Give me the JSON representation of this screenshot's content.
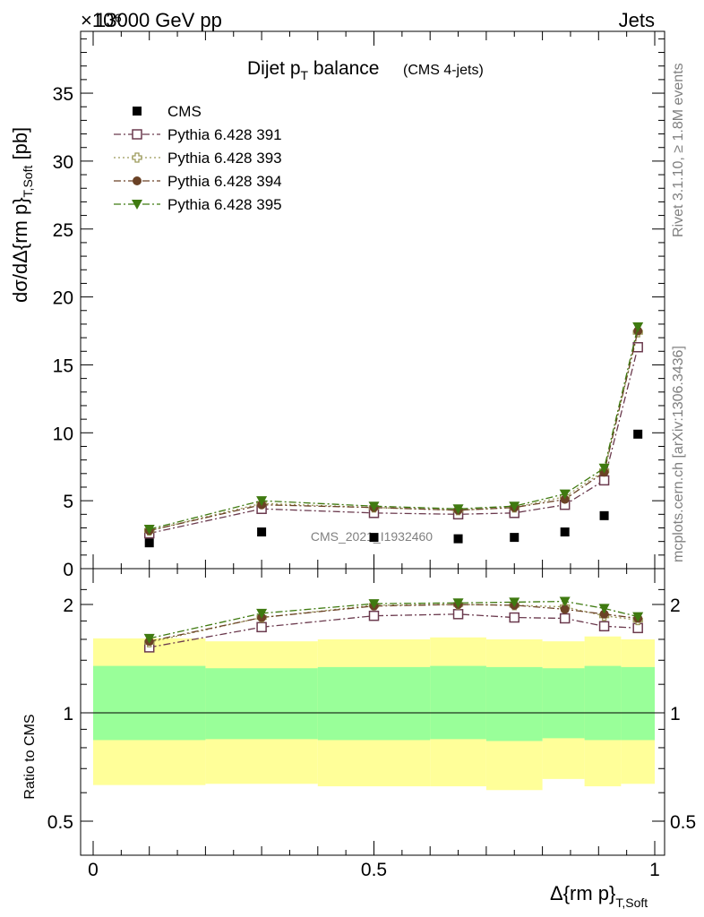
{
  "header": {
    "energy_label": "13000 GeV pp",
    "exponent_label": "×10⁶",
    "process_label": "Jets"
  },
  "title": {
    "main": "Dijet p",
    "main_sub": "T",
    "main_tail": " balance",
    "small": "(CMS 4-jets)"
  },
  "side_labels": {
    "rivet": "Rivet 3.1.10, ≥ 1.8M events",
    "mcplots": "mcplots.cern.ch [arXiv:1306.3436]"
  },
  "watermark": "CMS_2021_I1932460",
  "axes": {
    "ylabel_main": "dσ/dΔ{rm p}",
    "ylabel_main_sub": "T,Soft",
    "ylabel_main_unit": " [pb]",
    "ylabel_ratio": "Ratio to CMS",
    "xlabel": "Δ{rm p}",
    "xlabel_sub": "T,Soft"
  },
  "chart_data": [
    {
      "type": "scatter",
      "panel": "main",
      "x": [
        0.1,
        0.3,
        0.5,
        0.65,
        0.75,
        0.84,
        0.91,
        0.97
      ],
      "ylim": [
        0,
        39
      ],
      "xlim": [
        -0.02,
        1.02
      ],
      "y_multiplier": "×10⁶",
      "yticks": [
        0,
        5,
        10,
        15,
        20,
        25,
        30,
        35
      ],
      "ytick_labels": [
        "0",
        "5",
        "10",
        "15",
        "20",
        "25",
        "30",
        "35"
      ],
      "series": [
        {
          "name": "CMS",
          "color": "#000000",
          "marker": "square-filled",
          "line": "none",
          "values": [
            1.9,
            2.7,
            2.3,
            2.2,
            2.3,
            2.7,
            3.9,
            9.9
          ]
        },
        {
          "name": "Pythia 6.428 391",
          "color": "#6b3a4e",
          "marker": "square-open",
          "line": "dashdot",
          "values": [
            2.6,
            4.4,
            4.1,
            4.0,
            4.1,
            4.7,
            6.5,
            16.3
          ]
        },
        {
          "name": "Pythia 6.428 393",
          "color": "#9c9a5a",
          "marker": "cross-open",
          "line": "dotted",
          "values": [
            2.8,
            4.8,
            4.5,
            4.3,
            4.5,
            5.3,
            7.2,
            17.4
          ]
        },
        {
          "name": "Pythia 6.428 394",
          "color": "#6b4226",
          "marker": "circle-filled",
          "line": "dashdot",
          "values": [
            2.8,
            4.7,
            4.5,
            4.3,
            4.5,
            5.1,
            7.1,
            17.5
          ]
        },
        {
          "name": "Pythia 6.428 395",
          "color": "#3f7a10",
          "marker": "triangle-down-filled",
          "line": "dashdot",
          "values": [
            2.9,
            5.0,
            4.6,
            4.4,
            4.6,
            5.5,
            7.4,
            17.8
          ]
        }
      ]
    },
    {
      "type": "scatter",
      "panel": "ratio",
      "x": [
        0.1,
        0.3,
        0.5,
        0.65,
        0.75,
        0.84,
        0.91,
        0.97
      ],
      "ylim": [
        0.4,
        2.3
      ],
      "xlim": [
        -0.02,
        1.02
      ],
      "xticks": [
        0,
        0.5,
        1
      ],
      "xtick_labels": [
        "0",
        "0.5",
        "1"
      ],
      "yticks": [
        0.5,
        1,
        2
      ],
      "ytick_labels": [
        "0.5",
        "1",
        "2"
      ],
      "reference_line": 1,
      "bands": {
        "edges": [
          0,
          0.2,
          0.4,
          0.6,
          0.7,
          0.8,
          0.875,
          0.94,
          1.0
        ],
        "yellow_low": [
          0.63,
          0.635,
          0.625,
          0.625,
          0.61,
          0.655,
          0.625,
          0.635
        ],
        "yellow_high": [
          1.61,
          1.58,
          1.6,
          1.62,
          1.6,
          1.58,
          1.63,
          1.6
        ],
        "green_low": [
          0.84,
          0.845,
          0.84,
          0.845,
          0.835,
          0.85,
          0.84,
          0.84
        ],
        "green_high": [
          1.35,
          1.33,
          1.34,
          1.35,
          1.34,
          1.33,
          1.35,
          1.34
        ],
        "yellow_color": "#ffff99",
        "green_color": "#99ff99"
      },
      "series": [
        {
          "name": "Pythia 6.428 391",
          "color": "#6b3a4e",
          "marker": "square-open",
          "line": "dashdot",
          "values": [
            1.52,
            1.73,
            1.86,
            1.88,
            1.84,
            1.83,
            1.74,
            1.72
          ]
        },
        {
          "name": "Pythia 6.428 393",
          "color": "#9c9a5a",
          "marker": "cross-open",
          "line": "dotted",
          "values": [
            1.57,
            1.84,
            1.99,
            2.0,
            1.99,
            1.97,
            1.86,
            1.81
          ]
        },
        {
          "name": "Pythia 6.428 394",
          "color": "#6b4226",
          "marker": "circle-filled",
          "line": "dashdot",
          "values": [
            1.58,
            1.84,
            1.98,
            2.0,
            1.99,
            1.94,
            1.88,
            1.83
          ]
        },
        {
          "name": "Pythia 6.428 395",
          "color": "#3f7a10",
          "marker": "triangle-down-filled",
          "line": "dashdot",
          "values": [
            1.61,
            1.89,
            2.01,
            2.02,
            2.03,
            2.04,
            1.95,
            1.85
          ]
        }
      ]
    }
  ]
}
